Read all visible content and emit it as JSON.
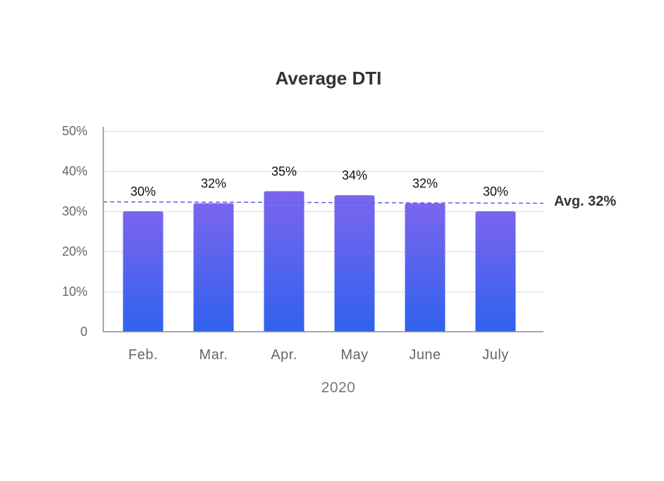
{
  "chart_data": {
    "type": "bar",
    "title": "Average DTI",
    "xlabel": "2020",
    "ylabel": "",
    "categories": [
      "Feb.",
      "Mar.",
      "Apr.",
      "May",
      "June",
      "July"
    ],
    "values": [
      30,
      32,
      35,
      34,
      32,
      30
    ],
    "data_labels": [
      "30%",
      "32%",
      "35%",
      "34%",
      "32%",
      "30%"
    ],
    "ylim": [
      0,
      50
    ],
    "y_ticks": [
      0,
      10,
      20,
      30,
      40,
      50
    ],
    "y_tick_labels": [
      "0",
      "10%",
      "20%",
      "30%",
      "40%",
      "50%"
    ],
    "grid": true,
    "average": {
      "value": 32,
      "label": "Avg. 32%"
    },
    "colors": {
      "bar_top": "#7B65EE",
      "bar_bottom": "#2F62EE",
      "average_line": "#5566DD",
      "grid": "#D8D8D8",
      "axis": "#888888"
    }
  }
}
